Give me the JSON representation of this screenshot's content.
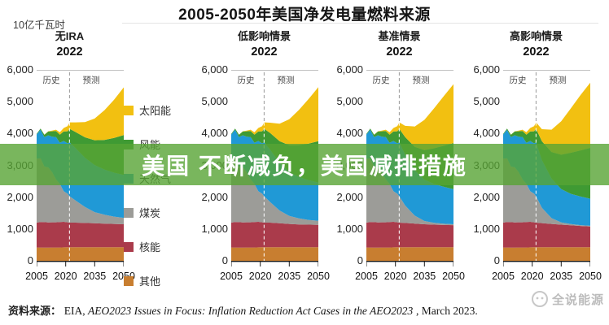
{
  "title": "2005-2050年美国净发电量燃料来源",
  "unit_label": "10亿千瓦时",
  "overlay_caption": "美国 不断减负，美国减排措施",
  "axis": {
    "year_label": "2022",
    "history_label": "历史",
    "forecast_label": "预测"
  },
  "legend": [
    {
      "label": "太阳能",
      "color": "#F2C011"
    },
    {
      "label": "风能",
      "color": "#3F9A33"
    },
    {
      "label": "天然气",
      "color": "#2099D6"
    },
    {
      "label": "煤炭",
      "color": "#9C9C98"
    },
    {
      "label": "核能",
      "color": "#AA3B4B"
    },
    {
      "label": "其他",
      "color": "#C87E30"
    }
  ],
  "footer": {
    "source_prefix": "资料来源：",
    "source_org": "EIA, ",
    "source_italic": "AEO2023 Issues in Focus: Inflation Reduction Act Cases in the AEO2023",
    "source_suffix": ", March 2023.",
    "watermark": "全说能源"
  },
  "chart_data": {
    "type": "area",
    "stacked": true,
    "title": "2005-2050年美国净发电量燃料来源",
    "ylabel": "10亿千瓦时",
    "ylim": [
      0,
      6000
    ],
    "yticks": [
      0,
      1000,
      2000,
      3000,
      4000,
      5000,
      6000
    ],
    "xticks": [
      2005,
      2020,
      2035,
      2050
    ],
    "divider_year": 2022,
    "grid": false,
    "legend_position": "between-panel-1-and-2",
    "series_colors": {
      "其他": "#C87E30",
      "核能": "#AA3B4B",
      "煤炭": "#9C9C98",
      "天然气": "#2099D6",
      "风能": "#3F9A33",
      "太阳能": "#F2C011"
    },
    "years": [
      2005,
      2007,
      2009,
      2011,
      2013,
      2015,
      2017,
      2019,
      2021,
      2022,
      2025,
      2030,
      2035,
      2040,
      2045,
      2050
    ],
    "panels": [
      {
        "name": "无IRA",
        "series": [
          {
            "name": "其他",
            "values": [
              420,
              420,
              415,
              415,
              420,
              420,
              420,
              425,
              430,
              430,
              430,
              430,
              430,
              430,
              430,
              430
            ]
          },
          {
            "name": "核能",
            "values": [
              780,
              800,
              800,
              790,
              790,
              790,
              800,
              800,
              780,
              770,
              770,
              760,
              750,
              740,
              730,
              720
            ]
          },
          {
            "name": "煤炭",
            "values": [
              2010,
              2000,
              1750,
              1730,
              1580,
              1350,
              1200,
              960,
              900,
              830,
              700,
              500,
              350,
              280,
              230,
              200
            ]
          },
          {
            "name": "天然气",
            "values": [
              760,
              900,
              920,
              1010,
              1110,
              1330,
              1290,
              1580,
              1580,
              1690,
              1650,
              1550,
              1480,
              1420,
              1380,
              1350
            ]
          },
          {
            "name": "风能",
            "values": [
              20,
              35,
              75,
              120,
              170,
              190,
              255,
              300,
              380,
              430,
              500,
              640,
              780,
              930,
              1090,
              1250
            ]
          },
          {
            "name": "太阳能",
            "values": [
              0,
              2,
              3,
              8,
              20,
              40,
              75,
              110,
              160,
              200,
              300,
              480,
              680,
              930,
              1200,
              1500
            ]
          }
        ]
      },
      {
        "name": "低影响情景",
        "series": [
          {
            "name": "其他",
            "values": [
              420,
              420,
              415,
              415,
              420,
              420,
              420,
              425,
              430,
              430,
              430,
              430,
              430,
              430,
              430,
              430
            ]
          },
          {
            "name": "核能",
            "values": [
              780,
              800,
              800,
              790,
              790,
              790,
              800,
              800,
              780,
              770,
              770,
              750,
              730,
              715,
              705,
              700
            ]
          },
          {
            "name": "煤炭",
            "values": [
              2010,
              2000,
              1750,
              1730,
              1580,
              1350,
              1200,
              960,
              900,
              830,
              650,
              400,
              250,
              190,
              150,
              130
            ]
          },
          {
            "name": "天然气",
            "values": [
              760,
              900,
              920,
              1010,
              1110,
              1330,
              1290,
              1580,
              1580,
              1690,
              1650,
              1500,
              1380,
              1300,
              1250,
              1200
            ]
          },
          {
            "name": "风能",
            "values": [
              20,
              35,
              75,
              120,
              170,
              190,
              255,
              300,
              380,
              430,
              520,
              680,
              840,
              1000,
              1150,
              1300
            ]
          },
          {
            "name": "太阳能",
            "values": [
              0,
              2,
              3,
              8,
              20,
              40,
              75,
              110,
              160,
              200,
              320,
              550,
              820,
              1110,
              1400,
              1700
            ]
          }
        ]
      },
      {
        "name": "基准情景",
        "series": [
          {
            "name": "其他",
            "values": [
              420,
              420,
              415,
              415,
              420,
              420,
              420,
              425,
              430,
              430,
              430,
              430,
              430,
              430,
              430,
              430
            ]
          },
          {
            "name": "核能",
            "values": [
              780,
              800,
              800,
              790,
              790,
              790,
              800,
              800,
              780,
              770,
              760,
              740,
              720,
              705,
              695,
              690
            ]
          },
          {
            "name": "煤炭",
            "values": [
              2010,
              2000,
              1750,
              1730,
              1580,
              1350,
              1200,
              960,
              900,
              830,
              550,
              250,
              100,
              60,
              40,
              30
            ]
          },
          {
            "name": "天然气",
            "values": [
              760,
              900,
              920,
              1010,
              1110,
              1330,
              1290,
              1580,
              1580,
              1690,
              1600,
              1430,
              1300,
              1220,
              1160,
              1100
            ]
          },
          {
            "name": "风能",
            "values": [
              20,
              35,
              75,
              120,
              170,
              190,
              255,
              300,
              380,
              430,
              550,
              730,
              930,
              1120,
              1290,
              1450
            ]
          },
          {
            "name": "太阳能",
            "values": [
              0,
              2,
              3,
              8,
              20,
              40,
              75,
              110,
              160,
              200,
              350,
              640,
              950,
              1260,
              1560,
              1850
            ]
          }
        ]
      },
      {
        "name": "高影响情景",
        "series": [
          {
            "name": "其他",
            "values": [
              420,
              420,
              415,
              415,
              420,
              420,
              420,
              425,
              430,
              430,
              430,
              430,
              430,
              430,
              430,
              430
            ]
          },
          {
            "name": "核能",
            "values": [
              780,
              800,
              800,
              790,
              790,
              790,
              800,
              800,
              780,
              770,
              755,
              730,
              705,
              685,
              665,
              650
            ]
          },
          {
            "name": "煤炭",
            "values": [
              2010,
              2000,
              1750,
              1730,
              1580,
              1350,
              1200,
              960,
              900,
              830,
              480,
              180,
              70,
              40,
              25,
              20
            ]
          },
          {
            "name": "天然气",
            "values": [
              760,
              900,
              920,
              1010,
              1110,
              1330,
              1290,
              1580,
              1580,
              1690,
              1500,
              1250,
              1050,
              950,
              900,
              850
            ]
          },
          {
            "name": "风能",
            "values": [
              20,
              35,
              75,
              120,
              170,
              190,
              255,
              300,
              380,
              430,
              590,
              830,
              1080,
              1290,
              1450,
              1600
            ]
          },
          {
            "name": "太阳能",
            "values": [
              0,
              2,
              3,
              8,
              20,
              40,
              75,
              110,
              160,
              200,
              380,
              700,
              1050,
              1400,
              1740,
              2050
            ]
          }
        ]
      }
    ]
  }
}
